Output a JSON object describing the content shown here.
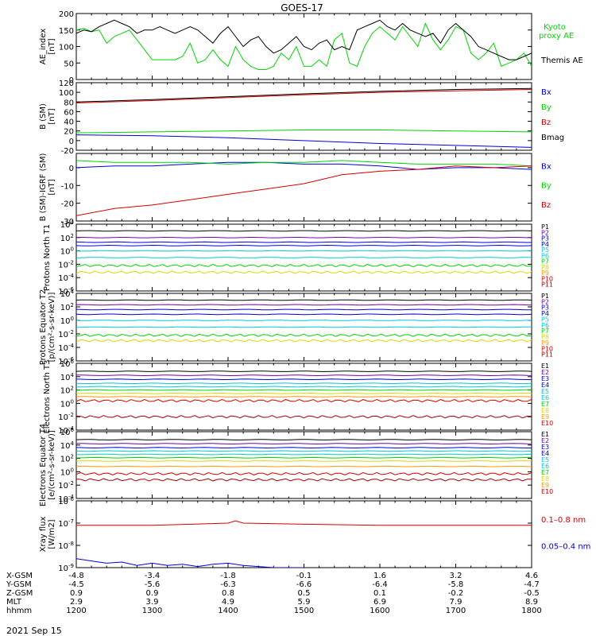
{
  "title": "GOES-17",
  "colors": {
    "black": "#000000",
    "red": "#d40000",
    "green": "#00d600",
    "blue": "#0000d8",
    "cyan": "#00c8d8",
    "yellow": "#d8d800",
    "orange": "#ff9a00",
    "darkred": "#a00000",
    "purple": "#7a00a0"
  },
  "chart_data": [
    {
      "type": "line",
      "panel": "ae",
      "ylabel": "AE_index [nT]",
      "ylim": [
        0,
        200
      ],
      "yticks": [
        "200",
        "150",
        "100",
        "50",
        "0"
      ],
      "xlim": [
        1200,
        1800
      ],
      "series": [
        {
          "name": "Kyoto proxy AE",
          "color": "#00d600",
          "x": [
            1200,
            1210,
            1220,
            1230,
            1240,
            1250,
            1260,
            1270,
            1280,
            1290,
            1300,
            1310,
            1320,
            1330,
            1340,
            1350,
            1360,
            1370,
            1380,
            1390,
            1400,
            1410,
            1420,
            1430,
            1440,
            1450,
            1460,
            1470,
            1480,
            1490,
            1500,
            1510,
            1520,
            1530,
            1540,
            1550,
            1560,
            1570,
            1580,
            1590,
            1600,
            1610,
            1620,
            1630,
            1640,
            1650,
            1660,
            1670,
            1680,
            1690,
            1700,
            1710,
            1720,
            1730,
            1740,
            1750,
            1760,
            1770,
            1780,
            1790,
            1800
          ],
          "values": [
            150,
            155,
            145,
            150,
            110,
            130,
            140,
            150,
            120,
            90,
            60,
            60,
            60,
            60,
            70,
            110,
            50,
            60,
            90,
            60,
            40,
            100,
            60,
            40,
            30,
            30,
            40,
            80,
            60,
            100,
            40,
            40,
            60,
            40,
            120,
            140,
            50,
            40,
            100,
            140,
            160,
            140,
            120,
            160,
            130,
            100,
            170,
            120,
            90,
            120,
            160,
            150,
            80,
            60,
            80,
            110,
            40,
            50,
            60,
            80,
            40
          ]
        },
        {
          "name": "Themis AE",
          "color": "#000000",
          "x": [
            1200,
            1210,
            1220,
            1230,
            1240,
            1250,
            1260,
            1270,
            1280,
            1290,
            1300,
            1310,
            1320,
            1330,
            1340,
            1350,
            1360,
            1370,
            1380,
            1390,
            1400,
            1410,
            1420,
            1430,
            1440,
            1450,
            1460,
            1470,
            1480,
            1490,
            1500,
            1510,
            1520,
            1530,
            1540,
            1550,
            1560,
            1570,
            1580,
            1590,
            1600,
            1610,
            1620,
            1630,
            1640,
            1650,
            1660,
            1670,
            1680,
            1690,
            1700,
            1710,
            1720,
            1730,
            1740,
            1750,
            1760,
            1770,
            1780,
            1790,
            1800
          ],
          "values": [
            140,
            150,
            145,
            160,
            170,
            180,
            170,
            160,
            140,
            150,
            150,
            160,
            150,
            140,
            150,
            160,
            150,
            130,
            110,
            140,
            160,
            130,
            100,
            120,
            130,
            100,
            80,
            90,
            110,
            130,
            100,
            90,
            110,
            120,
            90,
            100,
            90,
            150,
            160,
            170,
            180,
            160,
            150,
            170,
            150,
            140,
            130,
            140,
            110,
            150,
            170,
            150,
            130,
            100,
            90,
            80,
            70,
            60,
            60,
            70,
            80
          ]
        }
      ],
      "legend": [
        "Kyoto proxy AE",
        "Themis AE"
      ]
    },
    {
      "type": "line",
      "panel": "b",
      "ylabel": "B (SM) [nT]",
      "ylim": [
        -20,
        120
      ],
      "yticks": [
        "120",
        "100",
        "80",
        "60",
        "40",
        "20",
        "0",
        "-20"
      ],
      "xlim": [
        1200,
        1800
      ],
      "series": [
        {
          "name": "Bx",
          "color": "#0000d8",
          "x": [
            1200,
            1300,
            1400,
            1500,
            1600,
            1700,
            1800
          ],
          "values": [
            12,
            10,
            6,
            0,
            -6,
            -10,
            -14
          ]
        },
        {
          "name": "By",
          "color": "#00d600",
          "x": [
            1200,
            1300,
            1400,
            1500,
            1600,
            1700,
            1800
          ],
          "values": [
            16,
            18,
            20,
            22,
            22,
            20,
            18
          ]
        },
        {
          "name": "Bz",
          "color": "#d40000",
          "x": [
            1200,
            1300,
            1400,
            1500,
            1600,
            1700,
            1800
          ],
          "values": [
            78,
            83,
            89,
            95,
            100,
            103,
            106
          ]
        },
        {
          "name": "Bmag",
          "color": "#000000",
          "x": [
            1200,
            1300,
            1400,
            1500,
            1600,
            1700,
            1800
          ],
          "values": [
            80,
            85,
            91,
            97,
            102,
            106,
            108
          ]
        }
      ],
      "legend": [
        "Bx",
        "By",
        "Bz",
        "Bmag"
      ]
    },
    {
      "type": "line",
      "panel": "db",
      "ylabel": "B (SM)-IGRF (SM) [nT]",
      "ylim": [
        -30,
        8
      ],
      "yticks": [
        "0",
        "-10",
        "-20",
        "-30"
      ],
      "xlim": [
        1200,
        1800
      ],
      "series": [
        {
          "name": "Bx",
          "color": "#0000d8",
          "x": [
            1200,
            1250,
            1300,
            1350,
            1400,
            1450,
            1500,
            1550,
            1600,
            1650,
            1700,
            1750,
            1800
          ],
          "values": [
            0,
            1,
            1,
            2,
            3,
            3,
            2,
            2,
            1,
            -1,
            0,
            0,
            -1
          ]
        },
        {
          "name": "By",
          "color": "#00d600",
          "x": [
            1200,
            1250,
            1300,
            1350,
            1400,
            1450,
            1500,
            1550,
            1600,
            1650,
            1700,
            1750,
            1800
          ],
          "values": [
            4,
            3,
            3,
            3,
            2,
            3,
            3,
            4,
            3,
            2,
            2,
            2,
            1
          ]
        },
        {
          "name": "Bz",
          "color": "#d40000",
          "x": [
            1200,
            1250,
            1300,
            1350,
            1400,
            1450,
            1500,
            1550,
            1600,
            1650,
            1700,
            1750,
            1800
          ],
          "values": [
            -27,
            -23,
            -21,
            -18,
            -15,
            -12,
            -9,
            -4,
            -2,
            -1,
            1,
            0,
            1
          ]
        }
      ],
      "legend": [
        "Bx",
        "By",
        "Bz"
      ]
    },
    {
      "type": "line",
      "panel": "protons_t1",
      "ylabel": "Protons North T1",
      "yscale": "log",
      "ylim": [
        -6,
        4
      ],
      "yticks": [
        "10^4",
        "10^2",
        "10^0",
        "10^-2",
        "10^-4",
        "10^-6"
      ],
      "xlim": [
        1200,
        1800
      ],
      "levels": [
        3.0,
        2.0,
        1.3,
        0.8,
        0.0,
        -1.0,
        -2.2,
        -3.2
      ],
      "level_colors": [
        "#000000",
        "#7a00a0",
        "#0000d8",
        "#0000d8",
        "#00c8d8",
        "#00c8d8",
        "#00d600",
        "#d8d800"
      ],
      "legend": [
        "P1",
        "P2",
        "P3",
        "P4",
        "P5",
        "P6",
        "P7",
        "P8",
        "P9",
        "P10",
        "P11"
      ]
    },
    {
      "type": "line",
      "panel": "protons_t2",
      "ylabel": "Protons Equator T2 [p/(cm²-s-sr-keV)]",
      "yscale": "log",
      "ylim": [
        -6,
        4
      ],
      "yticks": [
        "10^4",
        "10^2",
        "10^0",
        "10^-2",
        "10^-4",
        "10^-6"
      ],
      "xlim": [
        1200,
        1800
      ],
      "levels": [
        3.0,
        2.3,
        1.6,
        0.9,
        0.0,
        -1.0,
        -2.2,
        -3.0
      ],
      "level_colors": [
        "#000000",
        "#7a00a0",
        "#0000d8",
        "#0000d8",
        "#00c8d8",
        "#00c8d8",
        "#00d600",
        "#d8d800"
      ],
      "legend": [
        "P1",
        "P2",
        "P3",
        "P4",
        "P5",
        "P6",
        "P7",
        "P8",
        "P9",
        "P10",
        "P11"
      ]
    },
    {
      "type": "line",
      "panel": "electrons_t3",
      "ylabel": "Electrons North T3",
      "yscale": "log",
      "ylim": [
        -4,
        6
      ],
      "yticks": [
        "10^6",
        "10^4",
        "10^2",
        "10^0",
        "10^-2",
        "10^-4"
      ],
      "xlim": [
        1200,
        1800
      ],
      "levels": [
        4.8,
        4.2,
        3.6,
        3.0,
        2.5,
        2.0,
        1.5,
        1.0,
        0.4,
        -2.0
      ],
      "level_colors": [
        "#000000",
        "#7a00a0",
        "#0000d8",
        "#00c8d8",
        "#00c8d8",
        "#00d600",
        "#d8d800",
        "#ff9a00",
        "#d40000",
        "#a00000"
      ],
      "legend": [
        "E1",
        "E2",
        "E3",
        "E4",
        "E5",
        "E6",
        "E7",
        "E8",
        "E9",
        "E10"
      ]
    },
    {
      "type": "line",
      "panel": "electrons_t4",
      "ylabel": "Electrons Equator T4 [e/(cm²-s-sr-keV)]",
      "yscale": "log",
      "ylim": [
        -4,
        6
      ],
      "yticks": [
        "10^6",
        "10^4",
        "10^2",
        "10^0",
        "10^-2",
        "10^-4"
      ],
      "xlim": [
        1200,
        1800
      ],
      "levels": [
        4.8,
        4.2,
        3.6,
        3.1,
        2.6,
        2.1,
        1.6,
        0.8,
        -0.3,
        -1.2
      ],
      "level_colors": [
        "#000000",
        "#7a00a0",
        "#0000d8",
        "#00c8d8",
        "#00c8d8",
        "#00d600",
        "#d8d800",
        "#ff9a00",
        "#d40000",
        "#a00000"
      ],
      "legend": [
        "E1",
        "E2",
        "E3",
        "E4",
        "E5",
        "E6",
        "E7",
        "E8",
        "E9",
        "E10"
      ]
    },
    {
      "type": "line",
      "panel": "xray",
      "ylabel": "Xray flux [W/m2]",
      "yscale": "log",
      "ylim": [
        -9,
        -6
      ],
      "yticks": [
        "10^-6",
        "10^-7",
        "10^-8",
        "10^-9"
      ],
      "xlim": [
        1200,
        1800
      ],
      "series": [
        {
          "name": "0.1–0.8 nm",
          "color": "#d40000",
          "x": [
            1200,
            1300,
            1400,
            1410,
            1420,
            1500,
            1600,
            1700,
            1800
          ],
          "values": [
            -7.1,
            -7.1,
            -7.0,
            -6.9,
            -7.0,
            -7.05,
            -7.1,
            -7.1,
            -7.1
          ]
        },
        {
          "name": "0.05–0.4 nm",
          "color": "#0000d8",
          "x": [
            1200,
            1220,
            1240,
            1260,
            1280,
            1300,
            1320,
            1340,
            1360,
            1380,
            1400,
            1420,
            1440,
            1460,
            1480,
            1500
          ],
          "values": [
            -8.6,
            -8.7,
            -8.8,
            -8.75,
            -8.9,
            -8.8,
            -8.9,
            -8.85,
            -8.95,
            -8.85,
            -8.8,
            -8.9,
            -8.95,
            -9.0,
            -9.0,
            -9.0
          ]
        }
      ],
      "legend": [
        "0.1–0.8 nm",
        "0.05–0.4 nm"
      ]
    }
  ],
  "axis_labels": {
    "rows": [
      {
        "label": "X-GSM",
        "values": [
          "-4.8",
          "-3.4",
          "-1.8",
          "-0.1",
          "1.6",
          "3.2",
          "4.6"
        ]
      },
      {
        "label": "Y-GSM",
        "values": [
          "-4.5",
          "-5.6",
          "-6.3",
          "-6.6",
          "-6.4",
          "-5.8",
          "-4.7"
        ]
      },
      {
        "label": "Z-GSM",
        "values": [
          "0.9",
          "0.9",
          "0.8",
          "0.5",
          "0.1",
          "-0.2",
          "-0.5"
        ]
      },
      {
        "label": "MLT",
        "values": [
          "2.9",
          "3.9",
          "4.9",
          "5.9",
          "6.9",
          "7.9",
          "8.9"
        ]
      },
      {
        "label": "hhmm",
        "values": [
          "1200",
          "1300",
          "1400",
          "1500",
          "1600",
          "1700",
          "1800"
        ]
      }
    ],
    "date": "2021 Sep 15"
  }
}
